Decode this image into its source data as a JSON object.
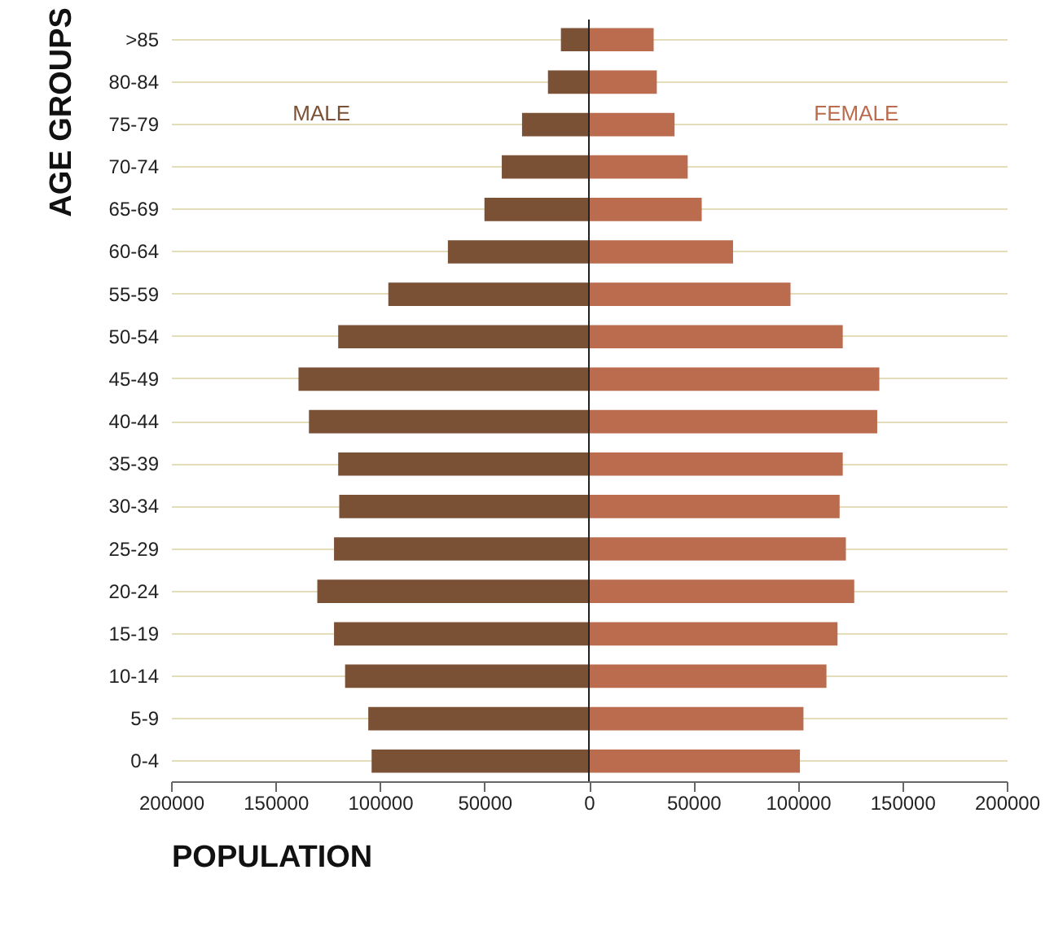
{
  "chart_data": {
    "type": "bar",
    "orientation": "horizontal",
    "stacked": true,
    "xlabel": "POPULATION",
    "ylabel": "AGE GROUPS",
    "categories": [
      ">85",
      "80-84",
      "75-79",
      "70-74",
      "65-69",
      "60-64",
      "55-59",
      "50-54",
      "45-49",
      "40-44",
      "35-39",
      "30-34",
      "25-29",
      "20-24",
      "15-19",
      "10-14",
      "5-9",
      "0-4"
    ],
    "series": [
      {
        "name": "MALE",
        "color": "#7b5136",
        "values": [
          -13400,
          -19600,
          -32000,
          -41700,
          -50000,
          -67500,
          -96000,
          -120000,
          -139000,
          -134000,
          -120000,
          -119500,
          -122000,
          -130000,
          -122000,
          -116700,
          -105600,
          -104000
        ]
      },
      {
        "name": "FEMALE",
        "color": "#bb6c4e",
        "values": [
          31000,
          32500,
          41000,
          47300,
          54000,
          69000,
          96500,
          121500,
          139000,
          138000,
          121500,
          120000,
          123000,
          127000,
          119000,
          113700,
          102700,
          101000
        ]
      }
    ],
    "xlim": [
      -200000,
      200000
    ],
    "xticks": [
      {
        "value": -200000,
        "label": "200000"
      },
      {
        "value": -150000,
        "label": "150000"
      },
      {
        "value": -100000,
        "label": "100000"
      },
      {
        "value": -50000,
        "label": "50000"
      },
      0,
      50000,
      100000,
      150000,
      200000
    ],
    "ref_lines": [
      {
        "axis": "x",
        "value": 0,
        "color": "#222222"
      }
    ],
    "grid": "y"
  }
}
